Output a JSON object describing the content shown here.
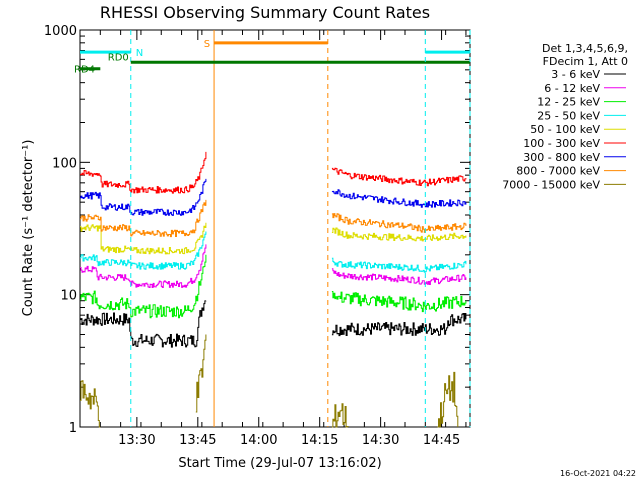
{
  "chart_data": {
    "type": "line",
    "title": "RHESSI Observing Summary Count Rates",
    "xlabel": "Start Time (29-Jul-07 13:16:02)",
    "ylabel": "Count Rate (s⁻¹ detector⁻¹)",
    "yscale": "log",
    "ylim": [
      1,
      1000
    ],
    "xlim_minutes": [
      0,
      96
    ],
    "x_ticks": [
      {
        "label": "13:30",
        "min": 14
      },
      {
        "label": "13:45",
        "min": 29
      },
      {
        "label": "14:00",
        "min": 44
      },
      {
        "label": "14:15",
        "min": 59
      },
      {
        "label": "14:30",
        "min": 74
      },
      {
        "label": "14:45",
        "min": 89
      }
    ],
    "y_ticks": [
      {
        "label": "1",
        "v": 1
      },
      {
        "label": "10",
        "v": 10
      },
      {
        "label": "100",
        "v": 100
      },
      {
        "label": "1000",
        "v": 1000
      }
    ],
    "legend_header": [
      "Det 1,3,4,5,6,9,",
      "FDecim 1, Att 0"
    ],
    "legend_position": "right",
    "series": [
      {
        "name": "3 - 6 keV",
        "color": "#000000",
        "segs": [
          [
            [
              0,
              6.5
            ],
            [
              12,
              6.5
            ],
            [
              12.5,
              4.5
            ],
            [
              28.5,
              4.5
            ],
            [
              29.5,
              7
            ],
            [
              30.5,
              9
            ],
            [
              31,
              9
            ]
          ],
          [
            [
              62,
              5.5
            ],
            [
              90,
              5.5
            ],
            [
              90.5,
              6.5
            ],
            [
              95,
              6.5
            ]
          ]
        ]
      },
      {
        "name": "6 - 12 keV",
        "color": "#ee00ee",
        "segs": [
          [
            [
              0,
              15.5
            ],
            [
              4,
              15.5
            ],
            [
              4.2,
              13.5
            ],
            [
              12,
              13.5
            ],
            [
              12.5,
              12
            ],
            [
              26,
              12
            ],
            [
              28,
              13
            ],
            [
              29.5,
              16
            ],
            [
              31,
              24
            ]
          ],
          [
            [
              62,
              15
            ],
            [
              64,
              14
            ],
            [
              82,
              13
            ],
            [
              85,
              12.5
            ],
            [
              95,
              13.5
            ]
          ]
        ]
      },
      {
        "name": "12 - 25 keV",
        "color": "#00ee00",
        "segs": [
          [
            [
              0,
              9.5
            ],
            [
              4,
              9.5
            ],
            [
              4.2,
              8.5
            ],
            [
              12,
              8.5
            ],
            [
              12.5,
              7.5
            ],
            [
              26,
              7.5
            ],
            [
              28,
              8.5
            ],
            [
              29.5,
              12
            ],
            [
              31,
              20
            ]
          ],
          [
            [
              62,
              10
            ],
            [
              64,
              9.5
            ],
            [
              82,
              8.5
            ],
            [
              85,
              8.2
            ],
            [
              95,
              9
            ]
          ]
        ]
      },
      {
        "name": "25 - 50 keV",
        "color": "#00eeee",
        "segs": [
          [
            [
              0,
              19
            ],
            [
              4,
              19
            ],
            [
              4.2,
              17.5
            ],
            [
              12,
              17.5
            ],
            [
              12.5,
              16.5
            ],
            [
              26,
              16.5
            ],
            [
              28,
              17.5
            ],
            [
              29.5,
              22
            ],
            [
              31,
              30
            ]
          ],
          [
            [
              62,
              18
            ],
            [
              64,
              17
            ],
            [
              82,
              16
            ],
            [
              85,
              15.5
            ],
            [
              95,
              17
            ]
          ]
        ]
      },
      {
        "name": "50 - 100 keV",
        "color": "#dddd00",
        "segs": [
          [
            [
              0,
              32
            ],
            [
              5,
              32
            ],
            [
              5.2,
              22
            ],
            [
              12,
              22
            ],
            [
              12.5,
              21.5
            ],
            [
              26,
              21.5
            ],
            [
              28,
              22.5
            ],
            [
              29.5,
              26
            ],
            [
              31,
              35
            ]
          ],
          [
            [
              62,
              31
            ],
            [
              66,
              28
            ],
            [
              80,
              27
            ],
            [
              85,
              26.5
            ],
            [
              95,
              28
            ]
          ]
        ]
      },
      {
        "name": "100 - 300 keV",
        "color": "#ff0000",
        "segs": [
          [
            [
              0,
              82
            ],
            [
              5,
              82
            ],
            [
              5.2,
              68
            ],
            [
              12,
              68
            ],
            [
              12.5,
              62
            ],
            [
              26,
              62
            ],
            [
              28,
              66
            ],
            [
              29.5,
              80
            ],
            [
              31,
              120
            ]
          ],
          [
            [
              62,
              88
            ],
            [
              66,
              80
            ],
            [
              80,
              72
            ],
            [
              85,
              70
            ],
            [
              95,
              76
            ]
          ]
        ]
      },
      {
        "name": "300 - 800 keV",
        "color": "#0000ee",
        "segs": [
          [
            [
              0,
              56
            ],
            [
              5,
              56
            ],
            [
              5.2,
              46
            ],
            [
              12,
              46
            ],
            [
              12.5,
              42
            ],
            [
              26,
              42
            ],
            [
              28,
              45
            ],
            [
              29.5,
              55
            ],
            [
              31,
              75
            ]
          ],
          [
            [
              62,
              62
            ],
            [
              66,
              56
            ],
            [
              80,
              50
            ],
            [
              85,
              48
            ],
            [
              95,
              50
            ]
          ]
        ]
      },
      {
        "name": "800 - 7000 keV",
        "color": "#ff8800",
        "segs": [
          [
            [
              0,
              38
            ],
            [
              5,
              38
            ],
            [
              5.2,
              32
            ],
            [
              12,
              32
            ],
            [
              12.5,
              29
            ],
            [
              26,
              29
            ],
            [
              28,
              31
            ],
            [
              29.5,
              40
            ],
            [
              31,
              52
            ]
          ],
          [
            [
              62,
              40
            ],
            [
              66,
              36
            ],
            [
              80,
              33
            ],
            [
              85,
              31
            ],
            [
              95,
              33
            ]
          ]
        ]
      },
      {
        "name": "7000 - 15000 keV",
        "color": "#8b7b00",
        "segs": [
          [
            [
              0,
              2
            ],
            [
              4,
              1.5
            ],
            [
              5,
              1
            ]
          ],
          [
            [
              28.5,
              1.6
            ],
            [
              29.5,
              2.2
            ],
            [
              30.5,
              3.5
            ],
            [
              31,
              5
            ]
          ],
          [
            [
              62,
              1
            ],
            [
              64,
              1.4
            ],
            [
              66,
              1
            ]
          ],
          [
            [
              88,
              1
            ],
            [
              90,
              1.8
            ],
            [
              92,
              2
            ],
            [
              93,
              1
            ]
          ]
        ]
      }
    ],
    "annotations": [
      {
        "label": "N",
        "color": "#00eeee",
        "x_min": 12.5,
        "line_style": "dashed",
        "bar": {
          "v": 680,
          "from": 0,
          "to": 12.5
        }
      },
      {
        "label": "S",
        "color": "#ff8800",
        "x_min": 33,
        "x2_min": 61,
        "line_style": "dashed",
        "bar": {
          "v": 800,
          "from": 33,
          "to": 61
        }
      },
      {
        "label": "RD0",
        "color": "#007700",
        "bar": {
          "v": 570,
          "from": 12.5,
          "to": 96
        }
      },
      {
        "label": "RD4",
        "color": "#007700",
        "bar": {
          "v": 510,
          "from": 0,
          "to": 5
        }
      },
      {
        "label": "",
        "color": "#00eeee",
        "x_min": 85,
        "x2_min": 96,
        "line_style": "dashed",
        "bar": {
          "v": 680,
          "from": 85,
          "to": 96
        }
      }
    ],
    "grid": false
  },
  "footer_timestamp": "16-Oct-2021 04:22"
}
